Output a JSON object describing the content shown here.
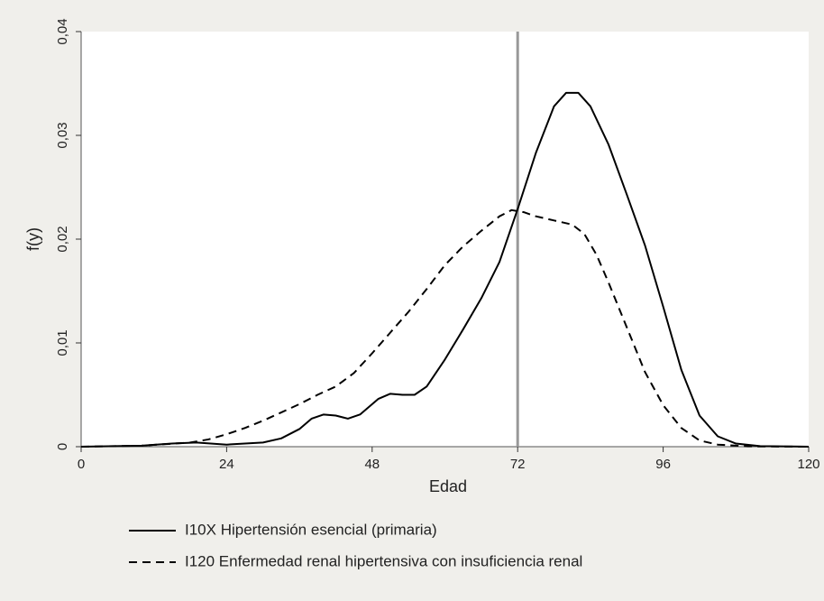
{
  "chart_data": {
    "type": "line",
    "x_label": "Edad",
    "y_label": "f(y)",
    "xlim": [
      0,
      120
    ],
    "xticks": [
      0,
      24,
      48,
      72,
      96,
      120
    ],
    "ylim": [
      0,
      0.04
    ],
    "yticks": [
      0,
      {
        "value": 0.01,
        "label": "0,01"
      },
      {
        "value": 0.02,
        "label": "0,02"
      },
      {
        "value": 0.03,
        "label": "0,03"
      },
      {
        "value": 0.04,
        "label": "0,04"
      }
    ],
    "reference_line_x": 72,
    "reference_line_color": "#999999",
    "series": [
      {
        "name": "I10X Hipertensión esencial (primaria)",
        "color": "#000000",
        "line_style": "solid",
        "x": [
          0,
          10,
          15,
          19,
          24,
          30,
          33,
          36,
          38,
          40,
          42,
          44,
          46,
          49,
          51,
          53,
          55,
          57,
          60,
          63,
          66,
          69,
          72,
          75,
          78,
          80,
          82,
          84,
          87,
          90,
          93,
          96,
          99,
          102,
          105,
          108,
          112,
          120
        ],
        "values": [
          0,
          0.0001,
          0.0003,
          0.0004,
          0.0002,
          0.0004,
          0.0008,
          0.0017,
          0.0027,
          0.0031,
          0.003,
          0.0027,
          0.0031,
          0.0046,
          0.0051,
          0.005,
          0.005,
          0.0058,
          0.0084,
          0.0113,
          0.0143,
          0.0178,
          0.0229,
          0.0283,
          0.0328,
          0.0341,
          0.0341,
          0.0328,
          0.0291,
          0.0243,
          0.0194,
          0.0135,
          0.0074,
          0.003,
          0.001,
          0.0003,
          5e-05,
          0
        ]
      },
      {
        "name": "I120 Enfermedad renal hipertensiva con insuficiencia renal",
        "color": "#000000",
        "line_style": "dashed",
        "x": [
          0,
          10,
          18,
          21,
          24,
          27,
          30,
          33,
          36,
          39,
          42,
          45,
          48,
          51,
          54,
          57,
          60,
          63,
          66,
          69,
          71,
          73,
          75,
          78,
          81,
          83,
          85,
          87,
          90,
          93,
          96,
          99,
          102,
          105,
          110,
          120
        ],
        "values": [
          0,
          0.0001,
          0.0004,
          0.0007,
          0.0012,
          0.0018,
          0.0025,
          0.0033,
          0.0041,
          0.005,
          0.0058,
          0.0071,
          0.009,
          0.011,
          0.013,
          0.0152,
          0.0175,
          0.0193,
          0.0208,
          0.0222,
          0.0228,
          0.0226,
          0.0222,
          0.0218,
          0.0214,
          0.0205,
          0.0185,
          0.0158,
          0.0115,
          0.0072,
          0.004,
          0.0018,
          0.0006,
          0.0002,
          3e-05,
          0
        ]
      }
    ]
  }
}
